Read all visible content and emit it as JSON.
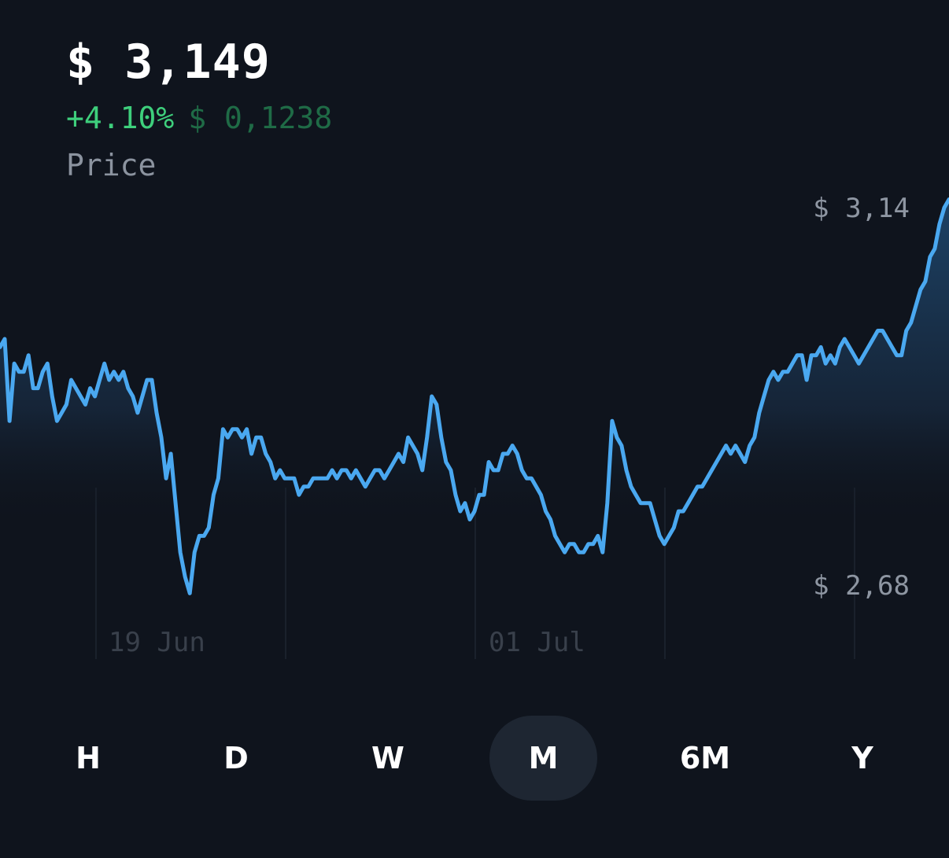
{
  "header": {
    "price": "$ 3,149",
    "change_pct": "+4.10%",
    "change_abs": "$ 0,1238",
    "label": "Price"
  },
  "chart_data": {
    "type": "area",
    "y_axis_labels": {
      "top": "$ 3,14",
      "bottom": "$ 2,68"
    },
    "x_tick_labels": [
      "19 Jun",
      "01 Jul"
    ],
    "y_top_value": 3.14,
    "y_bottom_value": 2.68,
    "line_color": "#4aa8f0",
    "series": [
      {
        "values": [
          2.97,
          2.98,
          2.88,
          2.95,
          2.94,
          2.94,
          2.96,
          2.92,
          2.92,
          2.94,
          2.95,
          2.91,
          2.88,
          2.89,
          2.9,
          2.93,
          2.92,
          2.91,
          2.9,
          2.92,
          2.91,
          2.93,
          2.95,
          2.93,
          2.94,
          2.93,
          2.94,
          2.92,
          2.91,
          2.89,
          2.91,
          2.93,
          2.93,
          2.89,
          2.86,
          2.81,
          2.84,
          2.78,
          2.72,
          2.69,
          2.67,
          2.72,
          2.74,
          2.74,
          2.75,
          2.79,
          2.81,
          2.87,
          2.86,
          2.87,
          2.87,
          2.86,
          2.87,
          2.84,
          2.86,
          2.86,
          2.84,
          2.83,
          2.81,
          2.82,
          2.81,
          2.81,
          2.81,
          2.79,
          2.8,
          2.8,
          2.81,
          2.81,
          2.81,
          2.81,
          2.82,
          2.81,
          2.82,
          2.82,
          2.81,
          2.82,
          2.81,
          2.8,
          2.81,
          2.82,
          2.82,
          2.81,
          2.82,
          2.83,
          2.84,
          2.83,
          2.86,
          2.85,
          2.84,
          2.82,
          2.86,
          2.91,
          2.9,
          2.86,
          2.83,
          2.82,
          2.79,
          2.77,
          2.78,
          2.76,
          2.77,
          2.79,
          2.79,
          2.83,
          2.82,
          2.82,
          2.84,
          2.84,
          2.85,
          2.84,
          2.82,
          2.81,
          2.81,
          2.8,
          2.79,
          2.77,
          2.76,
          2.74,
          2.73,
          2.72,
          2.73,
          2.73,
          2.72,
          2.72,
          2.73,
          2.73,
          2.74,
          2.72,
          2.78,
          2.88,
          2.86,
          2.85,
          2.82,
          2.8,
          2.79,
          2.78,
          2.78,
          2.78,
          2.76,
          2.74,
          2.73,
          2.74,
          2.75,
          2.77,
          2.77,
          2.78,
          2.79,
          2.8,
          2.8,
          2.81,
          2.82,
          2.83,
          2.84,
          2.85,
          2.84,
          2.85,
          2.84,
          2.83,
          2.85,
          2.86,
          2.89,
          2.91,
          2.93,
          2.94,
          2.93,
          2.94,
          2.94,
          2.95,
          2.96,
          2.96,
          2.93,
          2.96,
          2.96,
          2.97,
          2.95,
          2.96,
          2.95,
          2.97,
          2.98,
          2.97,
          2.96,
          2.95,
          2.96,
          2.97,
          2.98,
          2.99,
          2.99,
          2.98,
          2.97,
          2.96,
          2.96,
          2.99,
          3.0,
          3.02,
          3.04,
          3.05,
          3.08,
          3.09,
          3.12,
          3.14,
          3.15
        ]
      }
    ]
  },
  "ranges": {
    "items": [
      "H",
      "D",
      "W",
      "M",
      "6M",
      "Y"
    ],
    "selected": "M"
  }
}
